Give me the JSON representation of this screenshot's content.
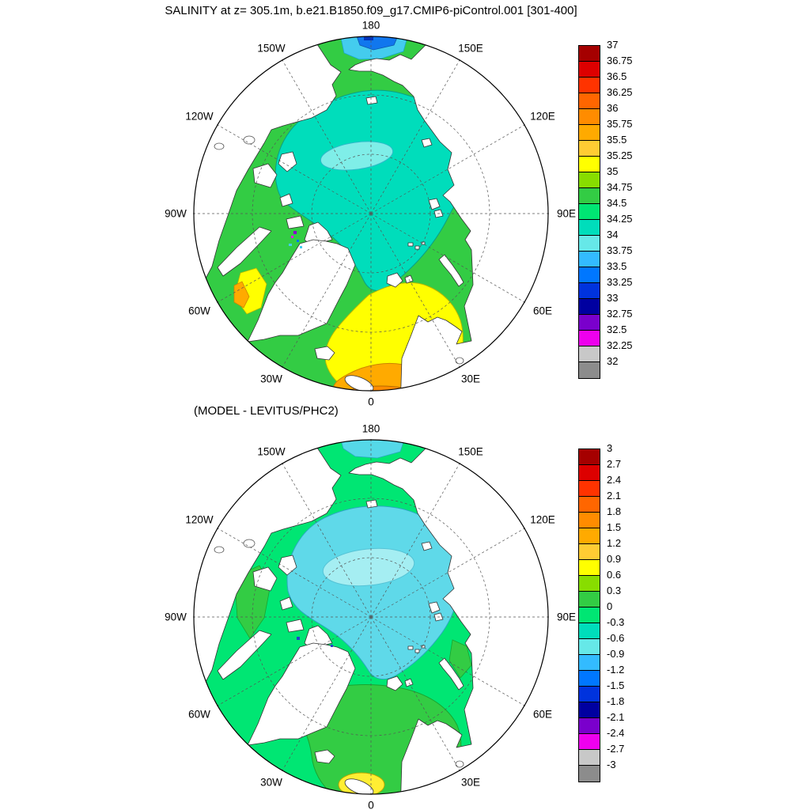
{
  "palette": [
    "#a50000",
    "#dd0000",
    "#ff3300",
    "#ff6600",
    "#ff8c00",
    "#ffaa00",
    "#ffcc33",
    "#ffff00",
    "#88dd00",
    "#33cc44",
    "#00e673",
    "#00ddbb",
    "#66e8e8",
    "#33bbff",
    "#0077ff",
    "#0033dd",
    "#0000a0",
    "#7a00cc",
    "#ee00ee",
    "#c8c8c8",
    "#8c8c8c"
  ],
  "panels": [
    {
      "title": "SALINITY at z= 305.1m, b.e21.B1850.f09_g17.CMIP6-piControl.001 [301-400]",
      "lon_labels": [
        "180",
        "150W",
        "150E",
        "120W",
        "120E",
        "90W",
        "90E",
        "60W",
        "60E",
        "30W",
        "30E",
        "0"
      ],
      "colorbar": {
        "labels": [
          "37",
          "36.75",
          "36.5",
          "36.25",
          "36",
          "35.75",
          "35.5",
          "35.25",
          "35",
          "34.75",
          "34.5",
          "34.25",
          "34",
          "33.75",
          "33.5",
          "33.25",
          "33",
          "32.75",
          "32.5",
          "32.25",
          "32"
        ]
      },
      "regions": {
        "ocean_base": "#33cc44",
        "central_halocline": "#00ddbb",
        "fresh_core": "#7feee8",
        "atlantic_yellow": "#ffff00",
        "atlantic_orange": "#ffaa00",
        "atlantic_deep_orange": "#ff8c00",
        "baffin_yellow": "#ffff00",
        "baffin_orange": "#ffaa00",
        "bering_cyan": "#44ccee",
        "bering_blue": "#1177ee",
        "bering_navy": "#0033bb",
        "speck_purple": "#8800cc",
        "speck_magenta": "#ee00ee",
        "speck_blue": "#0077ff",
        "speck_cyan": "#44ccee"
      }
    },
    {
      "title": "(MODEL - LEVITUS/PHC2)",
      "lon_labels": [
        "180",
        "150W",
        "150E",
        "120W",
        "120E",
        "90W",
        "90E",
        "60W",
        "60E",
        "30W",
        "30E",
        "0"
      ],
      "colorbar": {
        "labels": [
          "3",
          "2.7",
          "2.4",
          "2.1",
          "1.8",
          "1.5",
          "1.2",
          "0.9",
          "0.6",
          "0.3",
          "0",
          "-0.3",
          "-0.6",
          "-0.9",
          "-1.2",
          "-1.5",
          "-1.8",
          "-2.1",
          "-2.4",
          "-2.7",
          "-3"
        ]
      },
      "regions": {
        "ocean_base": "#00e673",
        "peripheral_green": "#33cc44",
        "left_green": "#33cc44",
        "topright_green": "#33cc44",
        "kara_green": "#33cc44",
        "central_cool": "#5fd9e9",
        "cool_core": "#a5eef2",
        "yellow_spot": "#ffee33",
        "top_cyan": "#55d8e8",
        "speck_blue": "#2244cc"
      }
    }
  ],
  "chart_data": [
    {
      "type": "heatmap",
      "subtype": "filled-contour polar stereographic map",
      "title": "SALINITY at z= 305.1m, b.e21.B1850.f09_g17.CMIP6-piControl.001 [301-400]",
      "variable": "SALINITY",
      "depth": "305.1m",
      "case": "b.e21.B1850.f09_g17.CMIP6-piControl.001",
      "averaging_period": "[301-400]",
      "projection": {
        "type": "north polar stereographic",
        "center": "North Pole",
        "outer_latitude": "60N",
        "meridian_labels": [
          "180",
          "150W",
          "150E",
          "120W",
          "120E",
          "90W",
          "90E",
          "60W",
          "60E",
          "30W",
          "30E",
          "0"
        ],
        "graticule": "dashed meridians every 30 deg, dashed latitude circles"
      },
      "colorbar": {
        "levels": [
          37,
          36.75,
          36.5,
          36.25,
          36,
          35.75,
          35.5,
          35.25,
          35,
          34.75,
          34.5,
          34.25,
          34,
          33.75,
          33.5,
          33.25,
          33,
          32.75,
          32.5,
          32.25,
          32
        ],
        "colors_ref": "palette",
        "orientation": "vertical",
        "position": "right"
      },
      "features": [
        {
          "region": "central Arctic basin toward 180 (Canada Basin)",
          "value_range": "34 - 34.25"
        },
        {
          "region": "fresh core oval inside Canada Basin",
          "value_range": "33.75 - 34"
        },
        {
          "region": "broad Arctic basin margin and shelf seas",
          "value_range": "34.25 - 34.75"
        },
        {
          "region": "Barents / Norwegian Sea Atlantic inflow",
          "value_range": "35 - 35.25"
        },
        {
          "region": "North Atlantic near 0 meridian at map edge",
          "value_range": "35.25 - 36"
        },
        {
          "region": "Baffin Bay margin near 60W",
          "value_range": "35 - 35.75"
        },
        {
          "region": "Bering Sea at map edge near 180",
          "value_range": "33 - 33.75"
        },
        {
          "region": "Canadian Archipelago channel specks",
          "value_range": "32.5 - 33.5"
        }
      ]
    },
    {
      "type": "heatmap",
      "subtype": "filled-contour polar stereographic map",
      "title": "(MODEL - LEVITUS/PHC2)",
      "variable": "salinity difference, model minus LEVITUS/PHC2 observations",
      "projection": {
        "type": "north polar stereographic",
        "center": "North Pole",
        "outer_latitude": "60N",
        "meridian_labels": [
          "180",
          "150W",
          "150E",
          "120W",
          "120E",
          "90W",
          "90E",
          "60W",
          "60E",
          "30W",
          "30E",
          "0"
        ],
        "graticule": "dashed meridians every 30 deg, dashed latitude circles"
      },
      "colorbar": {
        "levels": [
          3,
          2.7,
          2.4,
          2.1,
          1.8,
          1.5,
          1.2,
          0.9,
          0.6,
          0.3,
          0,
          -0.3,
          -0.6,
          -0.9,
          -1.2,
          -1.5,
          -1.8,
          -2.1,
          -2.4,
          -2.7,
          -3
        ],
        "colors_ref": "palette",
        "orientation": "vertical",
        "position": "right"
      },
      "features": [
        {
          "region": "most of the Arctic basin",
          "value_range": "-0.3 - 0"
        },
        {
          "region": "central Arctic cool/fresh patch",
          "value_range": "-0.6 - -0.3"
        },
        {
          "region": "inner core oval of fresh bias",
          "value_range": "-0.9 - -0.6"
        },
        {
          "region": "peripheral seas (Nordic seas, Baffin Bay, shelves)",
          "value_range": "0 - 0.6"
        },
        {
          "region": "spot near Iceland-Faroe at map bottom",
          "value_range": "0.6 - 0.9"
        },
        {
          "region": "Bering Sea edge near 180",
          "value_range": "-0.6 - -0.3"
        }
      ]
    }
  ]
}
